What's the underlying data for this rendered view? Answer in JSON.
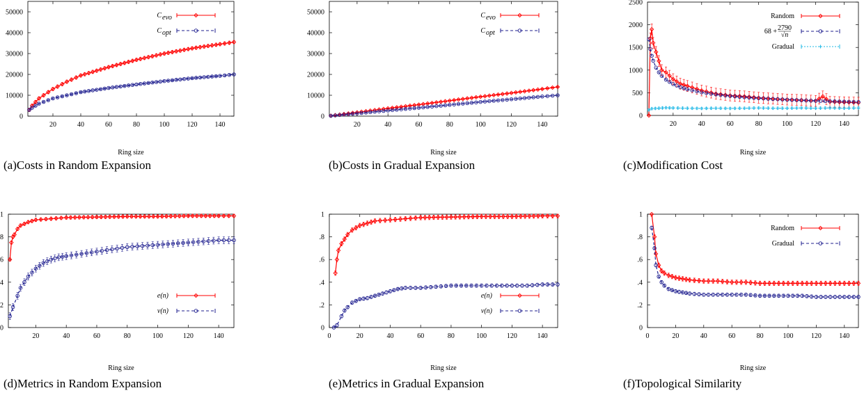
{
  "chart_data": [
    {
      "id": "a",
      "type": "line",
      "caption": "(a)Costs in Random Expansion",
      "xlabel": "Ring size",
      "ylabel": "",
      "xlim": [
        2,
        150
      ],
      "ylim": [
        0,
        55000
      ],
      "xticks": [
        20,
        40,
        60,
        80,
        100,
        120,
        140
      ],
      "yticks": [
        0,
        10000,
        20000,
        30000,
        40000,
        50000
      ],
      "legend_position": "top-right",
      "series": [
        {
          "name": "C_evo",
          "legend_main": "C",
          "legend_sub": "evo",
          "color": "#ff0000",
          "marker": "diamond",
          "dash": "",
          "x": [
            3,
            5,
            10,
            20,
            30,
            40,
            60,
            80,
            100,
            120,
            140,
            150
          ],
          "y": [
            3000,
            5000,
            8500,
            13000,
            16500,
            19500,
            23500,
            27000,
            30000,
            32500,
            34500,
            35500
          ],
          "err": 800
        },
        {
          "name": "C_opt",
          "legend_main": "C",
          "legend_sub": "opt",
          "color": "#1f1f8f",
          "marker": "circle",
          "dash": "4,3",
          "x": [
            3,
            5,
            10,
            20,
            30,
            40,
            60,
            80,
            100,
            120,
            140,
            150
          ],
          "y": [
            3000,
            4000,
            6000,
            8500,
            10000,
            11500,
            13500,
            15200,
            16800,
            18200,
            19300,
            20000
          ],
          "err": 300
        }
      ]
    },
    {
      "id": "b",
      "type": "line",
      "caption": "(b)Costs in Gradual Expansion",
      "xlabel": "Ring size",
      "ylabel": "",
      "xlim": [
        2,
        150
      ],
      "ylim": [
        0,
        55000
      ],
      "xticks": [
        20,
        40,
        60,
        80,
        100,
        120,
        140
      ],
      "yticks": [
        0,
        10000,
        20000,
        30000,
        40000,
        50000
      ],
      "legend_position": "top-right",
      "series": [
        {
          "name": "C_evo",
          "legend_main": "C",
          "legend_sub": "evo",
          "color": "#ff0000",
          "marker": "diamond",
          "dash": "",
          "x": [
            3,
            20,
            40,
            60,
            80,
            100,
            120,
            140,
            150
          ],
          "y": [
            200,
            1800,
            3700,
            5500,
            7400,
            9300,
            11100,
            13000,
            14000
          ],
          "err": 200
        },
        {
          "name": "C_opt",
          "legend_main": "C",
          "legend_sub": "opt",
          "color": "#1f1f8f",
          "marker": "circle",
          "dash": "4,3",
          "x": [
            3,
            20,
            40,
            60,
            80,
            100,
            120,
            140,
            150
          ],
          "y": [
            150,
            1300,
            2700,
            4000,
            5400,
            6800,
            8100,
            9400,
            10000
          ],
          "err": 150
        }
      ]
    },
    {
      "id": "c",
      "type": "line",
      "caption": "(c)Modification Cost",
      "xlabel": "Ring size",
      "ylabel": "",
      "xlim": [
        2,
        150
      ],
      "ylim": [
        0,
        2500
      ],
      "xticks": [
        20,
        40,
        60,
        80,
        100,
        120,
        140
      ],
      "yticks": [
        0,
        500,
        1000,
        1500,
        2000,
        2500
      ],
      "legend_position": "top-right",
      "series": [
        {
          "name": "Random",
          "legend_plain": "Random",
          "color": "#ff0000",
          "marker": "diamond",
          "dash": "",
          "x": [
            3,
            4,
            5,
            6,
            8,
            10,
            12,
            15,
            20,
            25,
            30,
            40,
            50,
            60,
            70,
            80,
            90,
            100,
            110,
            120,
            125,
            130,
            140,
            150
          ],
          "y": [
            0,
            1700,
            1900,
            1600,
            1400,
            1200,
            1000,
            950,
            800,
            700,
            650,
            550,
            480,
            440,
            420,
            390,
            370,
            350,
            340,
            320,
            420,
            300,
            290,
            280
          ],
          "err": 120
        },
        {
          "name": "68 + 2790/sqrt(n)",
          "legend_formula": true,
          "color": "#1f1f8f",
          "marker": "circle",
          "dash": "4,3",
          "x": [
            3,
            4,
            5,
            6,
            8,
            10,
            12,
            15,
            20,
            25,
            30,
            40,
            50,
            60,
            70,
            80,
            90,
            100,
            110,
            120,
            130,
            140,
            150
          ],
          "y": [
            1679,
            1463,
            1316,
            1207,
            1054,
            950,
            873,
            788,
            692,
            626,
            577,
            509,
            463,
            428,
            401,
            380,
            362,
            347,
            334,
            323,
            313,
            304,
            296
          ],
          "err": 0
        },
        {
          "name": "Gradual",
          "legend_plain": "Gradual",
          "color": "#1fb8e6",
          "marker": "plus",
          "dash": "2,2",
          "x": [
            3,
            5,
            10,
            15,
            20,
            30,
            40,
            50,
            60,
            70,
            80,
            90,
            100,
            110,
            120,
            130,
            140,
            150
          ],
          "y": [
            120,
            150,
            160,
            170,
            165,
            160,
            155,
            160,
            155,
            160,
            165,
            160,
            160,
            165,
            160,
            165,
            160,
            165
          ],
          "err": 25
        }
      ]
    },
    {
      "id": "d",
      "type": "line",
      "caption": "(d)Metrics in Random Expansion",
      "xlabel": "Ring size",
      "ylabel": "",
      "xlim": [
        2,
        150
      ],
      "ylim": [
        0,
        1
      ],
      "xticks": [
        20,
        40,
        60,
        80,
        100,
        120,
        140
      ],
      "yticks": [
        0,
        0.2,
        0.4,
        0.6,
        0.8,
        1
      ],
      "legend_position": "bottom-right",
      "series": [
        {
          "name": "e(n)",
          "legend_math": "e(n)",
          "color": "#ff0000",
          "marker": "diamond",
          "dash": "",
          "x": [
            3,
            4,
            5,
            6,
            8,
            10,
            15,
            20,
            30,
            40,
            60,
            80,
            100,
            120,
            140,
            150
          ],
          "y": [
            0.6,
            0.75,
            0.8,
            0.82,
            0.87,
            0.9,
            0.93,
            0.95,
            0.96,
            0.97,
            0.975,
            0.98,
            0.98,
            0.985,
            0.985,
            0.985
          ],
          "err": 0.015
        },
        {
          "name": "v(n)",
          "legend_math": "v(n)",
          "color": "#1f1f8f",
          "marker": "circle",
          "dash": "4,3",
          "x": [
            3,
            5,
            8,
            10,
            15,
            20,
            25,
            30,
            35,
            40,
            50,
            60,
            70,
            80,
            90,
            100,
            110,
            120,
            130,
            140,
            150
          ],
          "y": [
            0.1,
            0.18,
            0.28,
            0.35,
            0.45,
            0.52,
            0.57,
            0.6,
            0.62,
            0.63,
            0.65,
            0.67,
            0.69,
            0.71,
            0.72,
            0.73,
            0.74,
            0.75,
            0.76,
            0.77,
            0.77
          ],
          "err": 0.03
        }
      ]
    },
    {
      "id": "e",
      "type": "line",
      "caption": "(e)Metrics in Gradual Expansion",
      "xlabel": "Ring size",
      "ylabel": "",
      "xlim": [
        0,
        150
      ],
      "ylim": [
        0,
        1
      ],
      "xticks": [
        0,
        20,
        40,
        60,
        80,
        100,
        120,
        140
      ],
      "yticks": [
        0,
        0.2,
        0.4,
        0.6,
        0.8,
        1
      ],
      "legend_position": "bottom-right",
      "series": [
        {
          "name": "e(n)",
          "legend_math": "e(n)",
          "color": "#ff0000",
          "marker": "diamond",
          "dash": "",
          "x": [
            4,
            5,
            6,
            8,
            10,
            12,
            15,
            20,
            25,
            30,
            40,
            50,
            60,
            80,
            100,
            120,
            140,
            150
          ],
          "y": [
            0.48,
            0.6,
            0.68,
            0.74,
            0.78,
            0.82,
            0.86,
            0.9,
            0.92,
            0.94,
            0.95,
            0.96,
            0.97,
            0.975,
            0.98,
            0.98,
            0.985,
            0.985
          ],
          "err": 0.02
        },
        {
          "name": "v(n)",
          "legend_math": "v(n)",
          "color": "#1f1f8f",
          "marker": "circle",
          "dash": "4,3",
          "x": [
            3,
            5,
            8,
            10,
            12,
            15,
            20,
            25,
            30,
            35,
            40,
            45,
            50,
            60,
            70,
            80,
            90,
            100,
            110,
            120,
            130,
            140,
            150
          ],
          "y": [
            0.0,
            0.02,
            0.1,
            0.15,
            0.18,
            0.22,
            0.25,
            0.26,
            0.28,
            0.3,
            0.32,
            0.34,
            0.35,
            0.35,
            0.36,
            0.37,
            0.37,
            0.37,
            0.37,
            0.37,
            0.37,
            0.38,
            0.38
          ],
          "err": 0.015
        }
      ]
    },
    {
      "id": "f",
      "type": "line",
      "caption": "(f)Topological Similarity",
      "xlabel": "Ring size",
      "ylabel": "",
      "xlim": [
        0,
        150
      ],
      "ylim": [
        0,
        1
      ],
      "xticks": [
        0,
        20,
        40,
        60,
        80,
        100,
        120,
        140
      ],
      "yticks": [
        0,
        0.2,
        0.4,
        0.6,
        0.8,
        1
      ],
      "legend_position": "top-right",
      "series": [
        {
          "name": "Random",
          "legend_plain": "Random",
          "color": "#ff0000",
          "marker": "diamond",
          "dash": "",
          "x": [
            3,
            5,
            6,
            8,
            10,
            12,
            15,
            20,
            25,
            30,
            40,
            50,
            60,
            70,
            80,
            90,
            100,
            110,
            120,
            130,
            140,
            150
          ],
          "y": [
            1.0,
            0.8,
            0.65,
            0.55,
            0.5,
            0.48,
            0.46,
            0.44,
            0.43,
            0.42,
            0.41,
            0.41,
            0.4,
            0.4,
            0.39,
            0.39,
            0.39,
            0.39,
            0.39,
            0.39,
            0.39,
            0.39
          ],
          "err": 0.02
        },
        {
          "name": "Gradual",
          "legend_plain": "Gradual",
          "color": "#1f1f8f",
          "marker": "circle",
          "dash": "4,3",
          "x": [
            3,
            5,
            6,
            8,
            10,
            12,
            15,
            20,
            25,
            30,
            40,
            50,
            60,
            70,
            80,
            90,
            100,
            110,
            120,
            130,
            140,
            150
          ],
          "y": [
            0.88,
            0.7,
            0.55,
            0.45,
            0.4,
            0.37,
            0.34,
            0.32,
            0.31,
            0.3,
            0.29,
            0.29,
            0.29,
            0.29,
            0.28,
            0.28,
            0.28,
            0.28,
            0.27,
            0.27,
            0.27,
            0.27
          ],
          "err": 0.015
        }
      ]
    }
  ]
}
